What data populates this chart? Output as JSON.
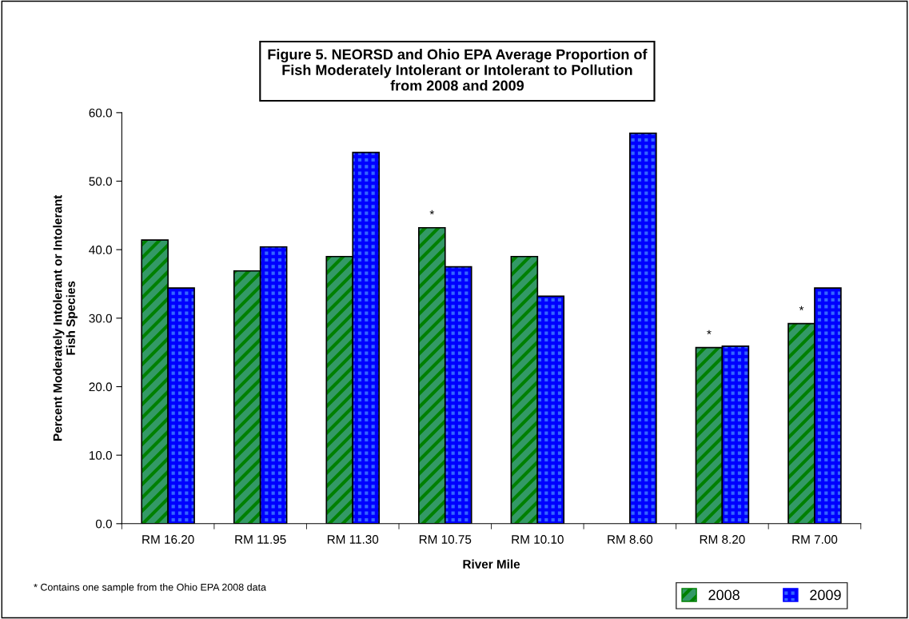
{
  "chart_data": {
    "type": "bar",
    "title": "Figure 5. NEORSD and Ohio EPA Average Proportion of\nFish Moderately Intolerant or Intolerant to Pollution\nfrom 2008 and 2009",
    "xlabel": "River Mile",
    "ylabel": "Percent Moderately Intolerant or Intolerant\nFish Species",
    "categories": [
      "RM 16.20",
      "RM 11.95",
      "RM 11.30",
      "RM 10.75",
      "RM 10.10",
      "RM 8.60",
      "RM 8.20",
      "RM 7.00"
    ],
    "series": [
      {
        "name": "2008",
        "color": "#339966",
        "values": [
          41.4,
          36.9,
          39.0,
          43.2,
          39.0,
          null,
          25.7,
          29.2
        ]
      },
      {
        "name": "2009",
        "color": "#3366ff",
        "values": [
          34.4,
          40.4,
          54.2,
          37.5,
          33.2,
          57.0,
          25.9,
          34.4
        ]
      }
    ],
    "ylim": [
      0,
      60
    ],
    "yticks": [
      {
        "value": 0,
        "label": "0.0"
      },
      {
        "value": 10,
        "label": "10.0"
      },
      {
        "value": 20,
        "label": "20.0"
      },
      {
        "value": 30,
        "label": "30.0"
      },
      {
        "value": 40,
        "label": "40.0"
      },
      {
        "value": 50,
        "label": "50.0"
      },
      {
        "value": 60,
        "label": "60.0"
      }
    ],
    "grid": false,
    "legend": "bottom right",
    "annotations": [
      {
        "text": "*",
        "x": "RM 10.75",
        "y": 43.2
      },
      {
        "text": "*",
        "x": "RM 8.20",
        "y": 25.7
      },
      {
        "text": "*",
        "x": "RM 7.00",
        "y": 29.2
      },
      "* Contains one sample from the Ohio EPA 2008 data"
    ]
  }
}
